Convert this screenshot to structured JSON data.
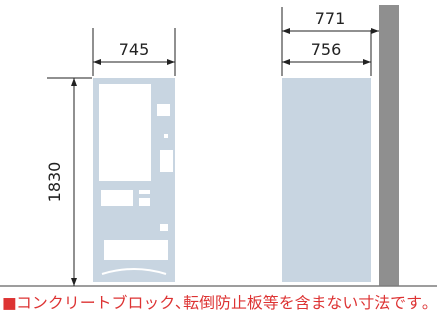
{
  "dimensions": {
    "front_width": "745",
    "height": "1830",
    "side_depth_total": "771",
    "side_depth_body": "756"
  },
  "note": {
    "marker": "■",
    "text": "コンクリートブロック､転倒防止板等を含まない寸法です｡"
  },
  "colors": {
    "body": "#c8d5e1",
    "panel": "#ffffff",
    "wall": "#8f8f8f",
    "ground": "#7d7d7d",
    "note": "#dd3333"
  }
}
